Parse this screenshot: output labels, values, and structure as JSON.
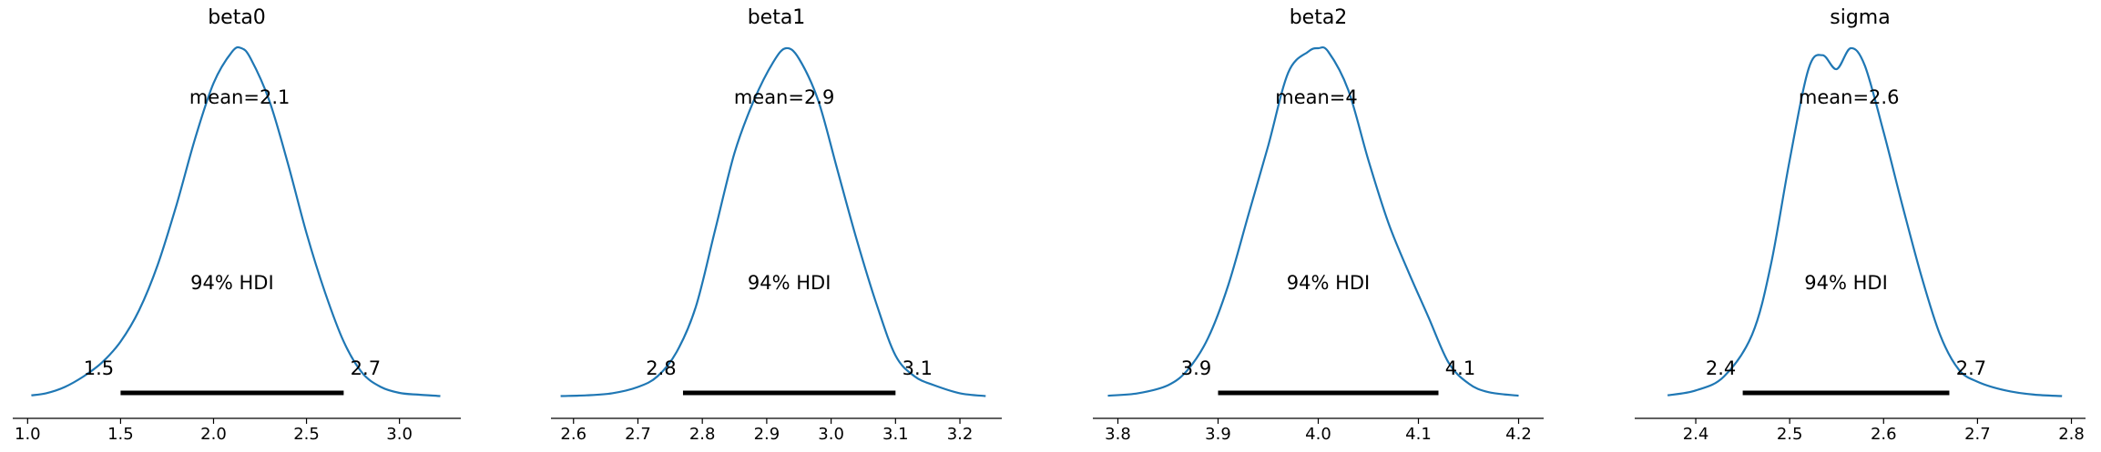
{
  "chart_data": [
    {
      "type": "area",
      "title": "beta0",
      "xlim": [
        0.92,
        3.33
      ],
      "xticks": [
        1.0,
        1.5,
        2.0,
        2.5,
        3.0
      ],
      "tick_labels": [
        "1.0",
        "1.5",
        "2.0",
        "2.5",
        "3.0"
      ],
      "mean_label": "mean=2.1",
      "hdi_label": "94% HDI",
      "hdi": [
        1.5,
        2.7
      ],
      "hdi_low_label": "1.5",
      "hdi_high_label": "2.7",
      "density": {
        "x": [
          1.02,
          1.1,
          1.2,
          1.3,
          1.4,
          1.5,
          1.6,
          1.7,
          1.8,
          1.9,
          2.0,
          2.1,
          2.15,
          2.2,
          2.3,
          2.4,
          2.5,
          2.6,
          2.7,
          2.8,
          2.9,
          3.0,
          3.1,
          3.22
        ],
        "y": [
          0.006,
          0.012,
          0.03,
          0.06,
          0.1,
          0.16,
          0.25,
          0.38,
          0.55,
          0.74,
          0.9,
          0.99,
          1.0,
          0.97,
          0.85,
          0.67,
          0.47,
          0.3,
          0.16,
          0.07,
          0.03,
          0.013,
          0.008,
          0.004
        ]
      }
    },
    {
      "type": "area",
      "title": "beta1",
      "xlim": [
        2.565,
        3.265
      ],
      "xticks": [
        2.6,
        2.7,
        2.8,
        2.9,
        3.0,
        3.1,
        3.2
      ],
      "tick_labels": [
        "2.6",
        "2.7",
        "2.8",
        "2.9",
        "3.0",
        "3.1",
        "3.2"
      ],
      "mean_label": "mean=2.9",
      "hdi_label": "94% HDI",
      "hdi": [
        2.77,
        3.1
      ],
      "hdi_low_label": "2.8",
      "hdi_high_label": "3.1",
      "density": {
        "x": [
          2.58,
          2.62,
          2.66,
          2.7,
          2.73,
          2.76,
          2.79,
          2.82,
          2.85,
          2.88,
          2.91,
          2.93,
          2.95,
          2.98,
          3.01,
          3.04,
          3.07,
          3.1,
          3.13,
          3.16,
          3.2,
          3.24
        ],
        "y": [
          0.004,
          0.006,
          0.012,
          0.03,
          0.06,
          0.13,
          0.26,
          0.48,
          0.7,
          0.85,
          0.96,
          1.0,
          0.97,
          0.85,
          0.65,
          0.45,
          0.27,
          0.12,
          0.06,
          0.035,
          0.012,
          0.004
        ]
      }
    },
    {
      "type": "area",
      "title": "beta2",
      "xlim": [
        3.775,
        4.225
      ],
      "xticks": [
        3.8,
        3.9,
        4.0,
        4.1,
        4.2
      ],
      "tick_labels": [
        "3.8",
        "3.9",
        "4.0",
        "4.1",
        "4.2"
      ],
      "mean_label": "mean=4",
      "hdi_label": "94% HDI",
      "hdi": [
        3.9,
        4.12
      ],
      "hdi_low_label": "3.9",
      "hdi_high_label": "4.1",
      "density": {
        "x": [
          3.79,
          3.82,
          3.85,
          3.87,
          3.89,
          3.91,
          3.93,
          3.95,
          3.97,
          3.99,
          4.0,
          4.01,
          4.03,
          4.05,
          4.07,
          4.09,
          4.11,
          4.13,
          4.15,
          4.17,
          4.2
        ],
        "y": [
          0.005,
          0.012,
          0.035,
          0.08,
          0.17,
          0.32,
          0.52,
          0.72,
          0.93,
          0.99,
          1.0,
          0.99,
          0.88,
          0.68,
          0.5,
          0.36,
          0.23,
          0.1,
          0.04,
          0.015,
          0.005
        ]
      }
    },
    {
      "type": "area",
      "title": "sigma",
      "xlim": [
        2.335,
        2.815
      ],
      "xticks": [
        2.4,
        2.5,
        2.6,
        2.7,
        2.8
      ],
      "tick_labels": [
        "2.4",
        "2.5",
        "2.6",
        "2.7",
        "2.8"
      ],
      "mean_label": "mean=2.6",
      "hdi_label": "94% HDI",
      "hdi": [
        2.45,
        2.67
      ],
      "hdi_low_label": "2.4",
      "hdi_high_label": "2.7",
      "density": {
        "x": [
          2.37,
          2.4,
          2.43,
          2.46,
          2.48,
          2.5,
          2.52,
          2.535,
          2.55,
          2.565,
          2.58,
          2.6,
          2.62,
          2.64,
          2.66,
          2.68,
          2.7,
          2.73,
          2.76,
          2.79
        ],
        "y": [
          0.006,
          0.02,
          0.06,
          0.18,
          0.38,
          0.68,
          0.94,
          0.98,
          0.94,
          1.0,
          0.95,
          0.76,
          0.55,
          0.35,
          0.18,
          0.08,
          0.045,
          0.02,
          0.008,
          0.004
        ]
      }
    }
  ],
  "colors": {
    "density_line": "#1f77b4",
    "hdi_bar": "#000000",
    "axis": "#000000"
  }
}
